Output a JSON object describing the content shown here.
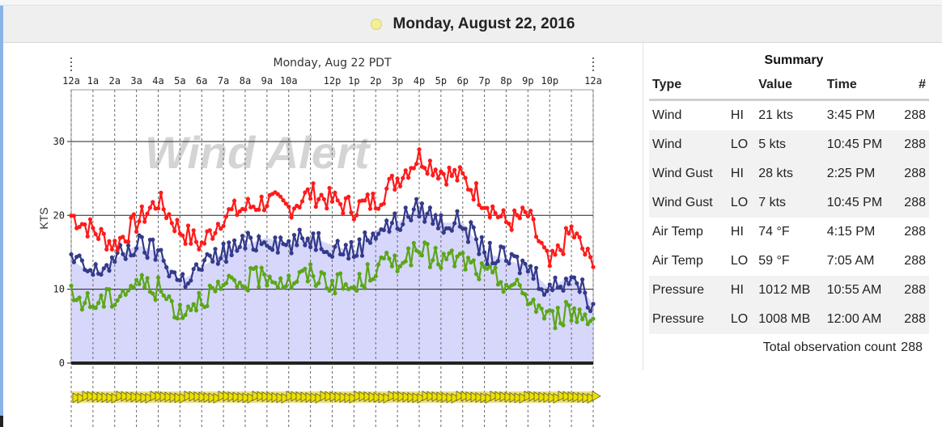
{
  "header": {
    "date": "Monday, August 22, 2016"
  },
  "chart_data": {
    "type": "line",
    "title": "Monday, Aug 22 PDT",
    "ylabel": "KTS",
    "xlabel": "",
    "ylim": [
      0,
      37
    ],
    "yticks": [
      0,
      10,
      20,
      30
    ],
    "xtick_labels": [
      "12a",
      "1a",
      "2a",
      "3a",
      "4a",
      "5a",
      "6a",
      "7a",
      "8a",
      "9a",
      "10a",
      "12p",
      "1p",
      "2p",
      "3p",
      "4p",
      "5p",
      "6p",
      "7p",
      "8p",
      "9p",
      "10p",
      "12a"
    ],
    "xtick_hours": [
      0,
      1,
      2,
      3,
      4,
      5,
      6,
      7,
      8,
      9,
      10,
      12,
      13,
      14,
      15,
      16,
      17,
      18,
      19,
      20,
      21,
      22,
      24
    ],
    "x_hours": [
      0,
      1,
      2,
      3,
      4,
      5,
      6,
      7,
      8,
      9,
      10,
      11,
      12,
      13,
      14,
      15,
      16,
      17,
      18,
      19,
      20,
      21,
      22,
      23,
      24
    ],
    "watermark": "Wind Alert",
    "series": [
      {
        "name": "Wind Gust",
        "color": "#ff1a1a",
        "values": [
          20,
          18,
          16,
          19,
          22,
          18,
          16,
          20,
          21,
          22,
          21,
          23,
          22,
          21,
          22,
          25,
          28,
          26,
          25,
          22,
          19,
          20,
          13,
          18,
          13
        ]
      },
      {
        "name": "Wind",
        "color": "#343a8a",
        "values": [
          14,
          12,
          14,
          16,
          15,
          11,
          13,
          15,
          16,
          17,
          16,
          17,
          16,
          15,
          18,
          19,
          21,
          19,
          19,
          15,
          14,
          13,
          10,
          12,
          8
        ]
      },
      {
        "name": "Wind Gust LO",
        "color": "#5ca619",
        "values": [
          9,
          8,
          9,
          11,
          10,
          7,
          9,
          10,
          11,
          12,
          11,
          12,
          11,
          10,
          13,
          14,
          15,
          14,
          14,
          12,
          11,
          9,
          6,
          7,
          6
        ]
      }
    ],
    "gridlines": true
  },
  "summary": {
    "title": "Summary",
    "headers": {
      "type": "Type",
      "value": "Value",
      "time": "Time",
      "count": "#"
    },
    "rows": [
      {
        "type": "Wind",
        "hl": "HI",
        "value": "21 kts",
        "time": "3:45 PM",
        "count": "288"
      },
      {
        "type": "Wind",
        "hl": "LO",
        "value": "5 kts",
        "time": "10:45 PM",
        "count": "288"
      },
      {
        "type": "Wind Gust",
        "hl": "HI",
        "value": "28 kts",
        "time": "2:25 PM",
        "count": "288"
      },
      {
        "type": "Wind Gust",
        "hl": "LO",
        "value": "7 kts",
        "time": "10:45 PM",
        "count": "288"
      },
      {
        "type": "Air Temp",
        "hl": "HI",
        "value": "74 °F",
        "time": "4:15 PM",
        "count": "288"
      },
      {
        "type": "Air Temp",
        "hl": "LO",
        "value": "59 °F",
        "time": "7:05 AM",
        "count": "288"
      },
      {
        "type": "Pressure",
        "hl": "HI",
        "value": "1012 MB",
        "time": "10:55 AM",
        "count": "288"
      },
      {
        "type": "Pressure",
        "hl": "LO",
        "value": "1008 MB",
        "time": "12:00 AM",
        "count": "288"
      }
    ],
    "total_label": "Total observation count",
    "total_value": "288"
  }
}
